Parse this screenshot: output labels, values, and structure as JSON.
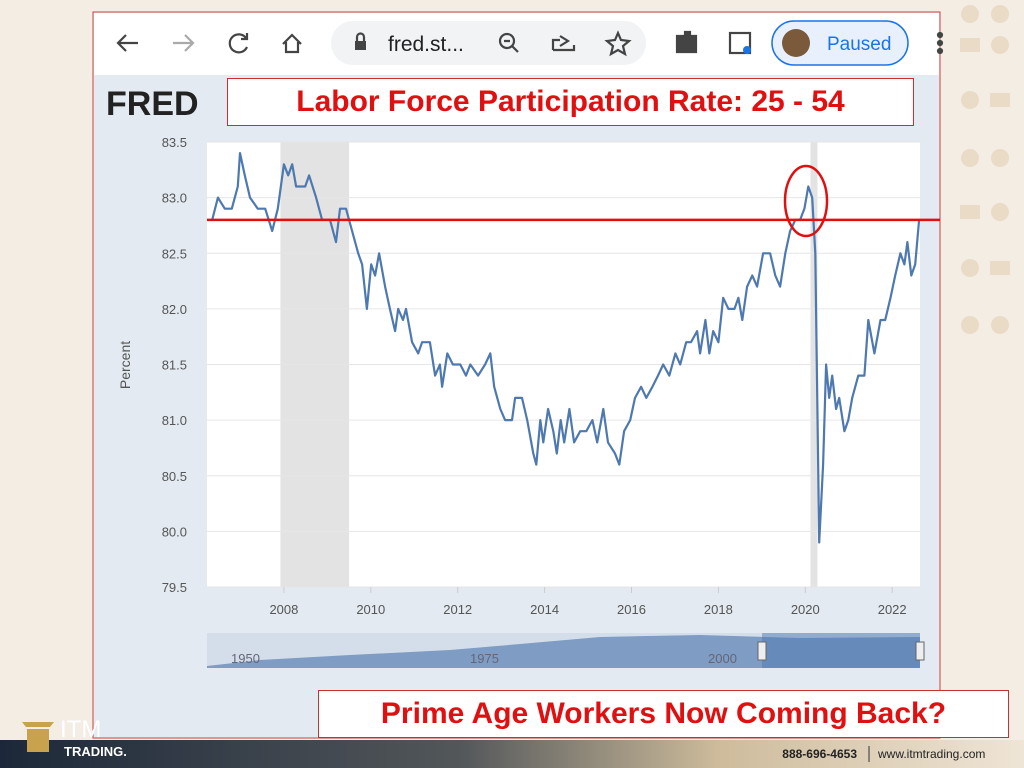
{
  "browser": {
    "url": "fred.st...",
    "profile": "Paused"
  },
  "logo": "FRED",
  "headline": "Labor Force Participation Rate: 25 - 54",
  "caption": "Prime Age Workers Now Coming Back?",
  "brand": {
    "name": "ITM",
    "sub": "TRADING."
  },
  "footer": {
    "phone": "888-696-4653",
    "website": "www.itmtrading.com"
  },
  "navigator": {
    "labels": [
      "1950",
      "1975",
      "2000"
    ]
  },
  "chart_data": {
    "type": "line",
    "y_label": "Percent",
    "color": "#4e79b0",
    "x": [
      2006.35,
      2006.48,
      2006.64,
      2006.8,
      2006.94,
      2006.99,
      2007.1,
      2007.22,
      2007.4,
      2007.57,
      2007.73,
      2007.86,
      2008.0,
      2008.1,
      2008.19,
      2008.28,
      2008.49,
      2008.58,
      2008.74,
      2008.88,
      2009.06,
      2009.2,
      2009.29,
      2009.43,
      2009.57,
      2009.71,
      2009.8,
      2009.91,
      2010.01,
      2010.1,
      2010.19,
      2010.33,
      2010.44,
      2010.56,
      2010.63,
      2010.74,
      2010.81,
      2010.95,
      2011.09,
      2011.18,
      2011.36,
      2011.48,
      2011.59,
      2011.64,
      2011.76,
      2011.89,
      2012.06,
      2012.19,
      2012.29,
      2012.47,
      2012.63,
      2012.75,
      2012.84,
      2012.98,
      2013.09,
      2013.25,
      2013.32,
      2013.48,
      2013.6,
      2013.74,
      2013.81,
      2013.9,
      2013.97,
      2014.08,
      2014.2,
      2014.28,
      2014.37,
      2014.45,
      2014.57,
      2014.68,
      2014.82,
      2014.96,
      2015.1,
      2015.21,
      2015.35,
      2015.46,
      2015.62,
      2015.72,
      2015.83,
      2015.97,
      2016.08,
      2016.22,
      2016.34,
      2016.48,
      2016.61,
      2016.73,
      2016.87,
      2017.01,
      2017.12,
      2017.26,
      2017.37,
      2017.51,
      2017.58,
      2017.7,
      2017.79,
      2017.88,
      2018.0,
      2018.11,
      2018.23,
      2018.37,
      2018.46,
      2018.55,
      2018.66,
      2018.78,
      2018.89,
      2019.03,
      2019.19,
      2019.31,
      2019.42,
      2019.54,
      2019.65,
      2019.77,
      2019.88,
      2019.98,
      2020.07,
      2020.16,
      2020.23,
      2020.32,
      2020.41,
      2020.48,
      2020.55,
      2020.62,
      2020.71,
      2020.78,
      2020.9,
      2020.99,
      2021.08,
      2021.22,
      2021.36,
      2021.45,
      2021.59,
      2021.73,
      2021.84,
      2021.96,
      2022.07,
      2022.19,
      2022.28,
      2022.35,
      2022.44,
      2022.53,
      2022.62
    ],
    "values": [
      82.8,
      83.0,
      82.9,
      82.9,
      83.1,
      83.4,
      83.2,
      83.0,
      82.9,
      82.9,
      82.7,
      82.9,
      83.3,
      83.2,
      83.3,
      83.1,
      83.1,
      83.2,
      83.0,
      82.8,
      82.8,
      82.6,
      82.9,
      82.9,
      82.7,
      82.5,
      82.4,
      82.0,
      82.4,
      82.3,
      82.5,
      82.2,
      82.0,
      81.8,
      82.0,
      81.9,
      82.0,
      81.7,
      81.6,
      81.7,
      81.7,
      81.4,
      81.5,
      81.3,
      81.6,
      81.5,
      81.5,
      81.4,
      81.5,
      81.4,
      81.5,
      81.6,
      81.3,
      81.1,
      81.0,
      81.0,
      81.2,
      81.2,
      81.0,
      80.7,
      80.6,
      81.0,
      80.8,
      81.1,
      80.9,
      80.7,
      81.0,
      80.8,
      81.1,
      80.8,
      80.9,
      80.9,
      81.0,
      80.8,
      81.1,
      80.8,
      80.7,
      80.6,
      80.9,
      81.0,
      81.2,
      81.3,
      81.2,
      81.3,
      81.4,
      81.5,
      81.4,
      81.6,
      81.5,
      81.7,
      81.7,
      81.8,
      81.6,
      81.9,
      81.6,
      81.8,
      81.7,
      82.1,
      82.0,
      82.0,
      82.1,
      81.9,
      82.2,
      82.3,
      82.2,
      82.5,
      82.5,
      82.3,
      82.2,
      82.5,
      82.7,
      82.8,
      82.8,
      82.9,
      83.1,
      83.0,
      82.5,
      79.9,
      80.6,
      81.5,
      81.2,
      81.4,
      81.1,
      81.2,
      80.9,
      81.0,
      81.2,
      81.4,
      81.4,
      81.9,
      81.6,
      81.9,
      81.9,
      82.1,
      82.3,
      82.5,
      82.4,
      82.6,
      82.3,
      82.4,
      82.8
    ],
    "xlim": [
      2006.23,
      2022.64
    ],
    "xticks": [
      2008,
      2010,
      2012,
      2014,
      2016,
      2018,
      2020,
      2022
    ],
    "ylim": [
      79.5,
      83.5
    ],
    "yticks": [
      79.5,
      {
        "value": 80,
        "label": "80.0"
      },
      80.5,
      {
        "value": 81,
        "label": "81.0"
      },
      81.5,
      {
        "value": 82,
        "label": "82.0"
      },
      82.5,
      {
        "value": 83,
        "label": "83.0"
      },
      83.5
    ],
    "grid": true,
    "shaded_periods": [
      [
        2007.92,
        2009.5
      ],
      [
        2020.12,
        2020.28
      ]
    ],
    "reference_line": 82.8,
    "reference_color": "#e01010"
  }
}
